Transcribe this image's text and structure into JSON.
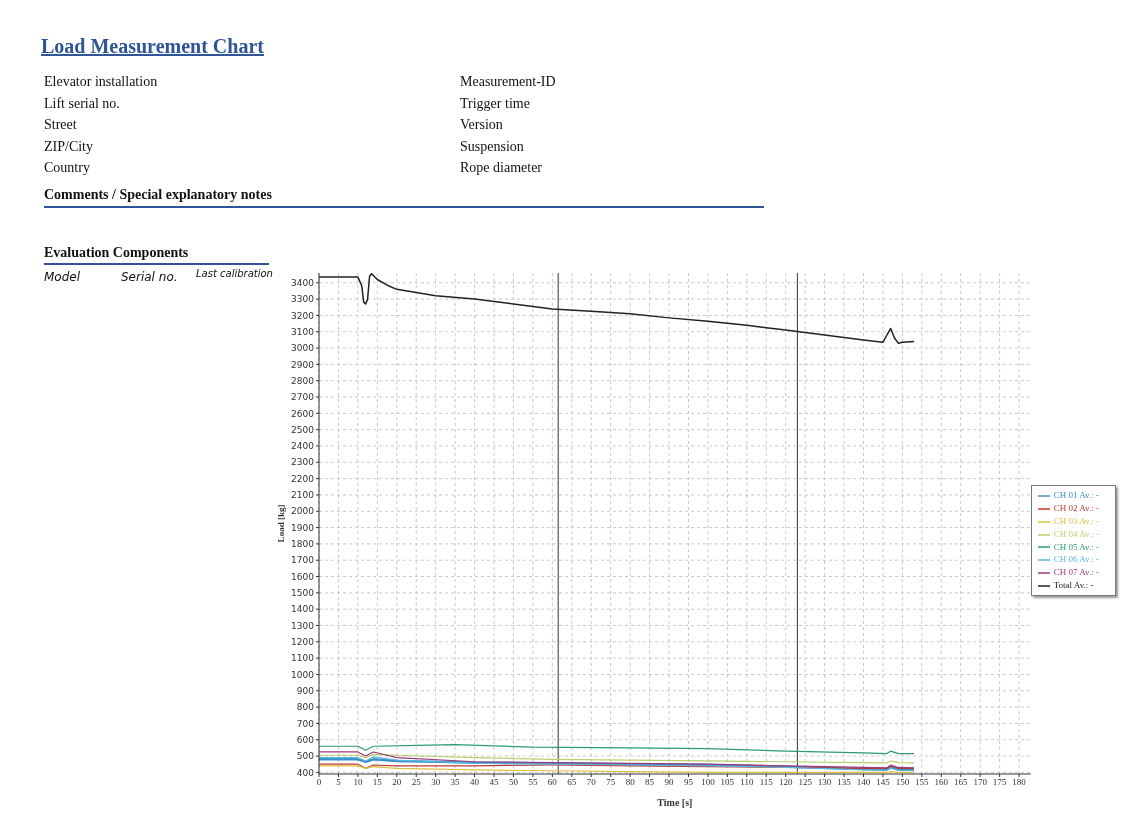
{
  "chart_data": {
    "type": "line",
    "title": "Load Measurement Chart",
    "annotations": [
      "Elevator installation",
      "Lift serial no.",
      "Street",
      "ZIP/City",
      "Country",
      "Measurement-ID",
      "Trigger time",
      "Version",
      "Suspension",
      "Rope diameter",
      "Comments / Special explanatory notes",
      "Evaluation Components",
      "Model",
      "Serial no.",
      "Last calibration"
    ],
    "xlabel": "Time [s]",
    "ylabel": "Load [kg]",
    "xlim": [
      0,
      183
    ],
    "xticks": [
      0,
      5,
      10,
      15,
      20,
      25,
      30,
      35,
      40,
      45,
      50,
      55,
      60,
      65,
      70,
      75,
      80,
      85,
      90,
      95,
      100,
      105,
      110,
      115,
      120,
      125,
      130,
      135,
      140,
      145,
      150,
      155,
      160,
      165,
      170,
      175,
      180
    ],
    "ylim": [
      390,
      3460
    ],
    "yticks": [
      400,
      500,
      600,
      700,
      800,
      900,
      1000,
      1100,
      1200,
      1300,
      1400,
      1500,
      1600,
      1700,
      1800,
      1900,
      2000,
      2100,
      2200,
      2300,
      2400,
      2500,
      2600,
      2700,
      2800,
      2900,
      3000,
      3100,
      3200,
      3300,
      3400
    ],
    "grid": true,
    "legend": "right",
    "marker": "none",
    "line_style": "solid",
    "ref_lines": [
      {
        "axis": "x",
        "value": 61.5,
        "color": "#333333"
      },
      {
        "axis": "x",
        "value": 123,
        "color": "#333333"
      }
    ],
    "series": [
      {
        "name": "CH 01 Av.: -",
        "color": "#3a8fc8",
        "x": [
          0,
          10,
          12,
          14,
          20,
          40,
          60,
          80,
          100,
          120,
          140,
          146,
          147,
          149,
          153
        ],
        "values": [
          480,
          480,
          465,
          480,
          470,
          460,
          455,
          450,
          445,
          435,
          420,
          418,
          430,
          418,
          415
        ]
      },
      {
        "name": "CH 02 Av.: -",
        "color": "#c0392b",
        "x": [
          0,
          10,
          12,
          14,
          20,
          40,
          60,
          80,
          100,
          120,
          140,
          146,
          147,
          149,
          153
        ],
        "values": [
          450,
          450,
          425,
          445,
          440,
          440,
          445,
          440,
          435,
          430,
          425,
          425,
          440,
          425,
          425
        ]
      },
      {
        "name": "CH 03 Av.: -",
        "color": "#e0c040",
        "x": [
          0,
          10,
          12,
          14,
          20,
          40,
          60,
          80,
          100,
          120,
          140,
          146,
          147,
          149,
          153
        ],
        "values": [
          440,
          440,
          425,
          435,
          425,
          415,
          410,
          405,
          400,
          400,
          400,
          400,
          405,
          400,
          400
        ]
      },
      {
        "name": "CH 04 Av.: -",
        "color": "#b8d070",
        "x": [
          0,
          10,
          12,
          14,
          20,
          40,
          60,
          80,
          100,
          120,
          140,
          146,
          147,
          149,
          153
        ],
        "values": [
          505,
          505,
          490,
          510,
          505,
          490,
          480,
          475,
          470,
          465,
          460,
          458,
          470,
          460,
          458
        ]
      },
      {
        "name": "CH 05 Av.: -",
        "color": "#2a9a78",
        "x": [
          0,
          10,
          12,
          14,
          25,
          35,
          55,
          80,
          100,
          120,
          140,
          146,
          147,
          149,
          153
        ],
        "values": [
          560,
          560,
          535,
          560,
          565,
          570,
          555,
          550,
          545,
          530,
          520,
          515,
          530,
          515,
          515
        ]
      },
      {
        "name": "CH 06 Av.: -",
        "color": "#5bb8e0",
        "x": [
          0,
          10,
          12,
          14,
          20,
          40,
          60,
          80,
          100,
          120,
          140,
          146,
          147,
          149,
          153
        ],
        "values": [
          490,
          490,
          470,
          495,
          475,
          455,
          450,
          445,
          440,
          430,
          415,
          412,
          425,
          412,
          410
        ]
      },
      {
        "name": "CH 07 Av.: -",
        "color": "#9a3a7a",
        "x": [
          0,
          10,
          12,
          14,
          20,
          40,
          60,
          80,
          100,
          120,
          140,
          146,
          147,
          149,
          153
        ],
        "values": [
          525,
          525,
          500,
          525,
          490,
          465,
          460,
          455,
          450,
          440,
          430,
          428,
          445,
          430,
          428
        ]
      },
      {
        "name": "Total Av.: -",
        "color": "#222222",
        "x": [
          0,
          10,
          11,
          11.5,
          12,
          12.5,
          13,
          13.5,
          15,
          18,
          20,
          25,
          30,
          40,
          50,
          60,
          70,
          80,
          90,
          100,
          110,
          120,
          130,
          140,
          145,
          146,
          147,
          148,
          149,
          150,
          153
        ],
        "values": [
          3435,
          3435,
          3380,
          3280,
          3270,
          3300,
          3440,
          3455,
          3420,
          3380,
          3360,
          3340,
          3320,
          3300,
          3270,
          3240,
          3225,
          3210,
          3185,
          3165,
          3140,
          3110,
          3080,
          3050,
          3035,
          3080,
          3120,
          3060,
          3030,
          3035,
          3040
        ]
      }
    ]
  }
}
